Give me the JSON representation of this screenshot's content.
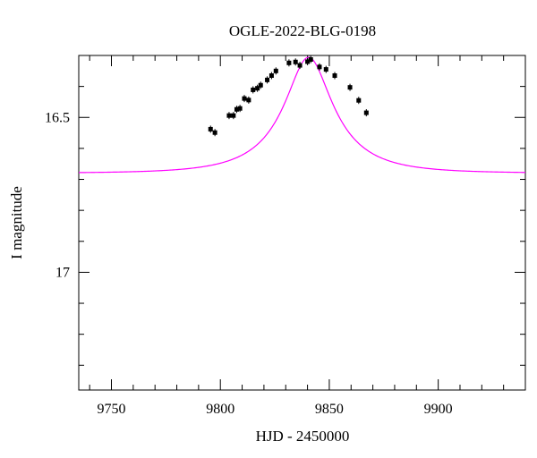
{
  "chart_data": {
    "type": "scatter",
    "title": "OGLE-2022-BLG-0198",
    "xlabel": "HJD - 2450000",
    "ylabel": "I magnitude",
    "xlim": [
      9735,
      9940
    ],
    "ylim": [
      17.38,
      16.3
    ],
    "y_inverted": true,
    "grid": false,
    "x_ticks": [
      9750,
      9800,
      9850,
      9900
    ],
    "x_tick_labels": [
      "9750",
      "9800",
      "9850",
      "9900"
    ],
    "y_ticks": [
      16.5,
      17.0
    ],
    "y_tick_labels": [
      "16.5",
      "17"
    ],
    "x_minor_step": 10,
    "y_minor_step": 0.1,
    "colors": {
      "model": "#ff00ff",
      "points": "#000000"
    },
    "model": {
      "name": "",
      "curve": {
        "t0": 9840.5,
        "tE": 30,
        "u0": 0.37,
        "baseline_mag": 16.68,
        "peak_mag": 16.306
      }
    },
    "series": [
      {
        "name": "",
        "x": [
          9795.5,
          9797.5,
          9804.0,
          9806.0,
          9807.5,
          9809.0,
          9811.0,
          9813.0,
          9815.0,
          9817.0,
          9818.5,
          9821.5,
          9823.5,
          9825.5,
          9831.5,
          9834.5,
          9836.5,
          9840.0,
          9841.5,
          9845.5,
          9848.5,
          9852.5,
          9859.5,
          9863.5,
          9867.0
        ],
        "y": [
          16.538,
          16.549,
          16.494,
          16.494,
          16.474,
          16.471,
          16.439,
          16.444,
          16.411,
          16.406,
          16.396,
          16.379,
          16.365,
          16.35,
          16.324,
          16.321,
          16.332,
          16.32,
          16.313,
          16.337,
          16.345,
          16.365,
          16.403,
          16.445,
          16.485
        ]
      }
    ]
  }
}
